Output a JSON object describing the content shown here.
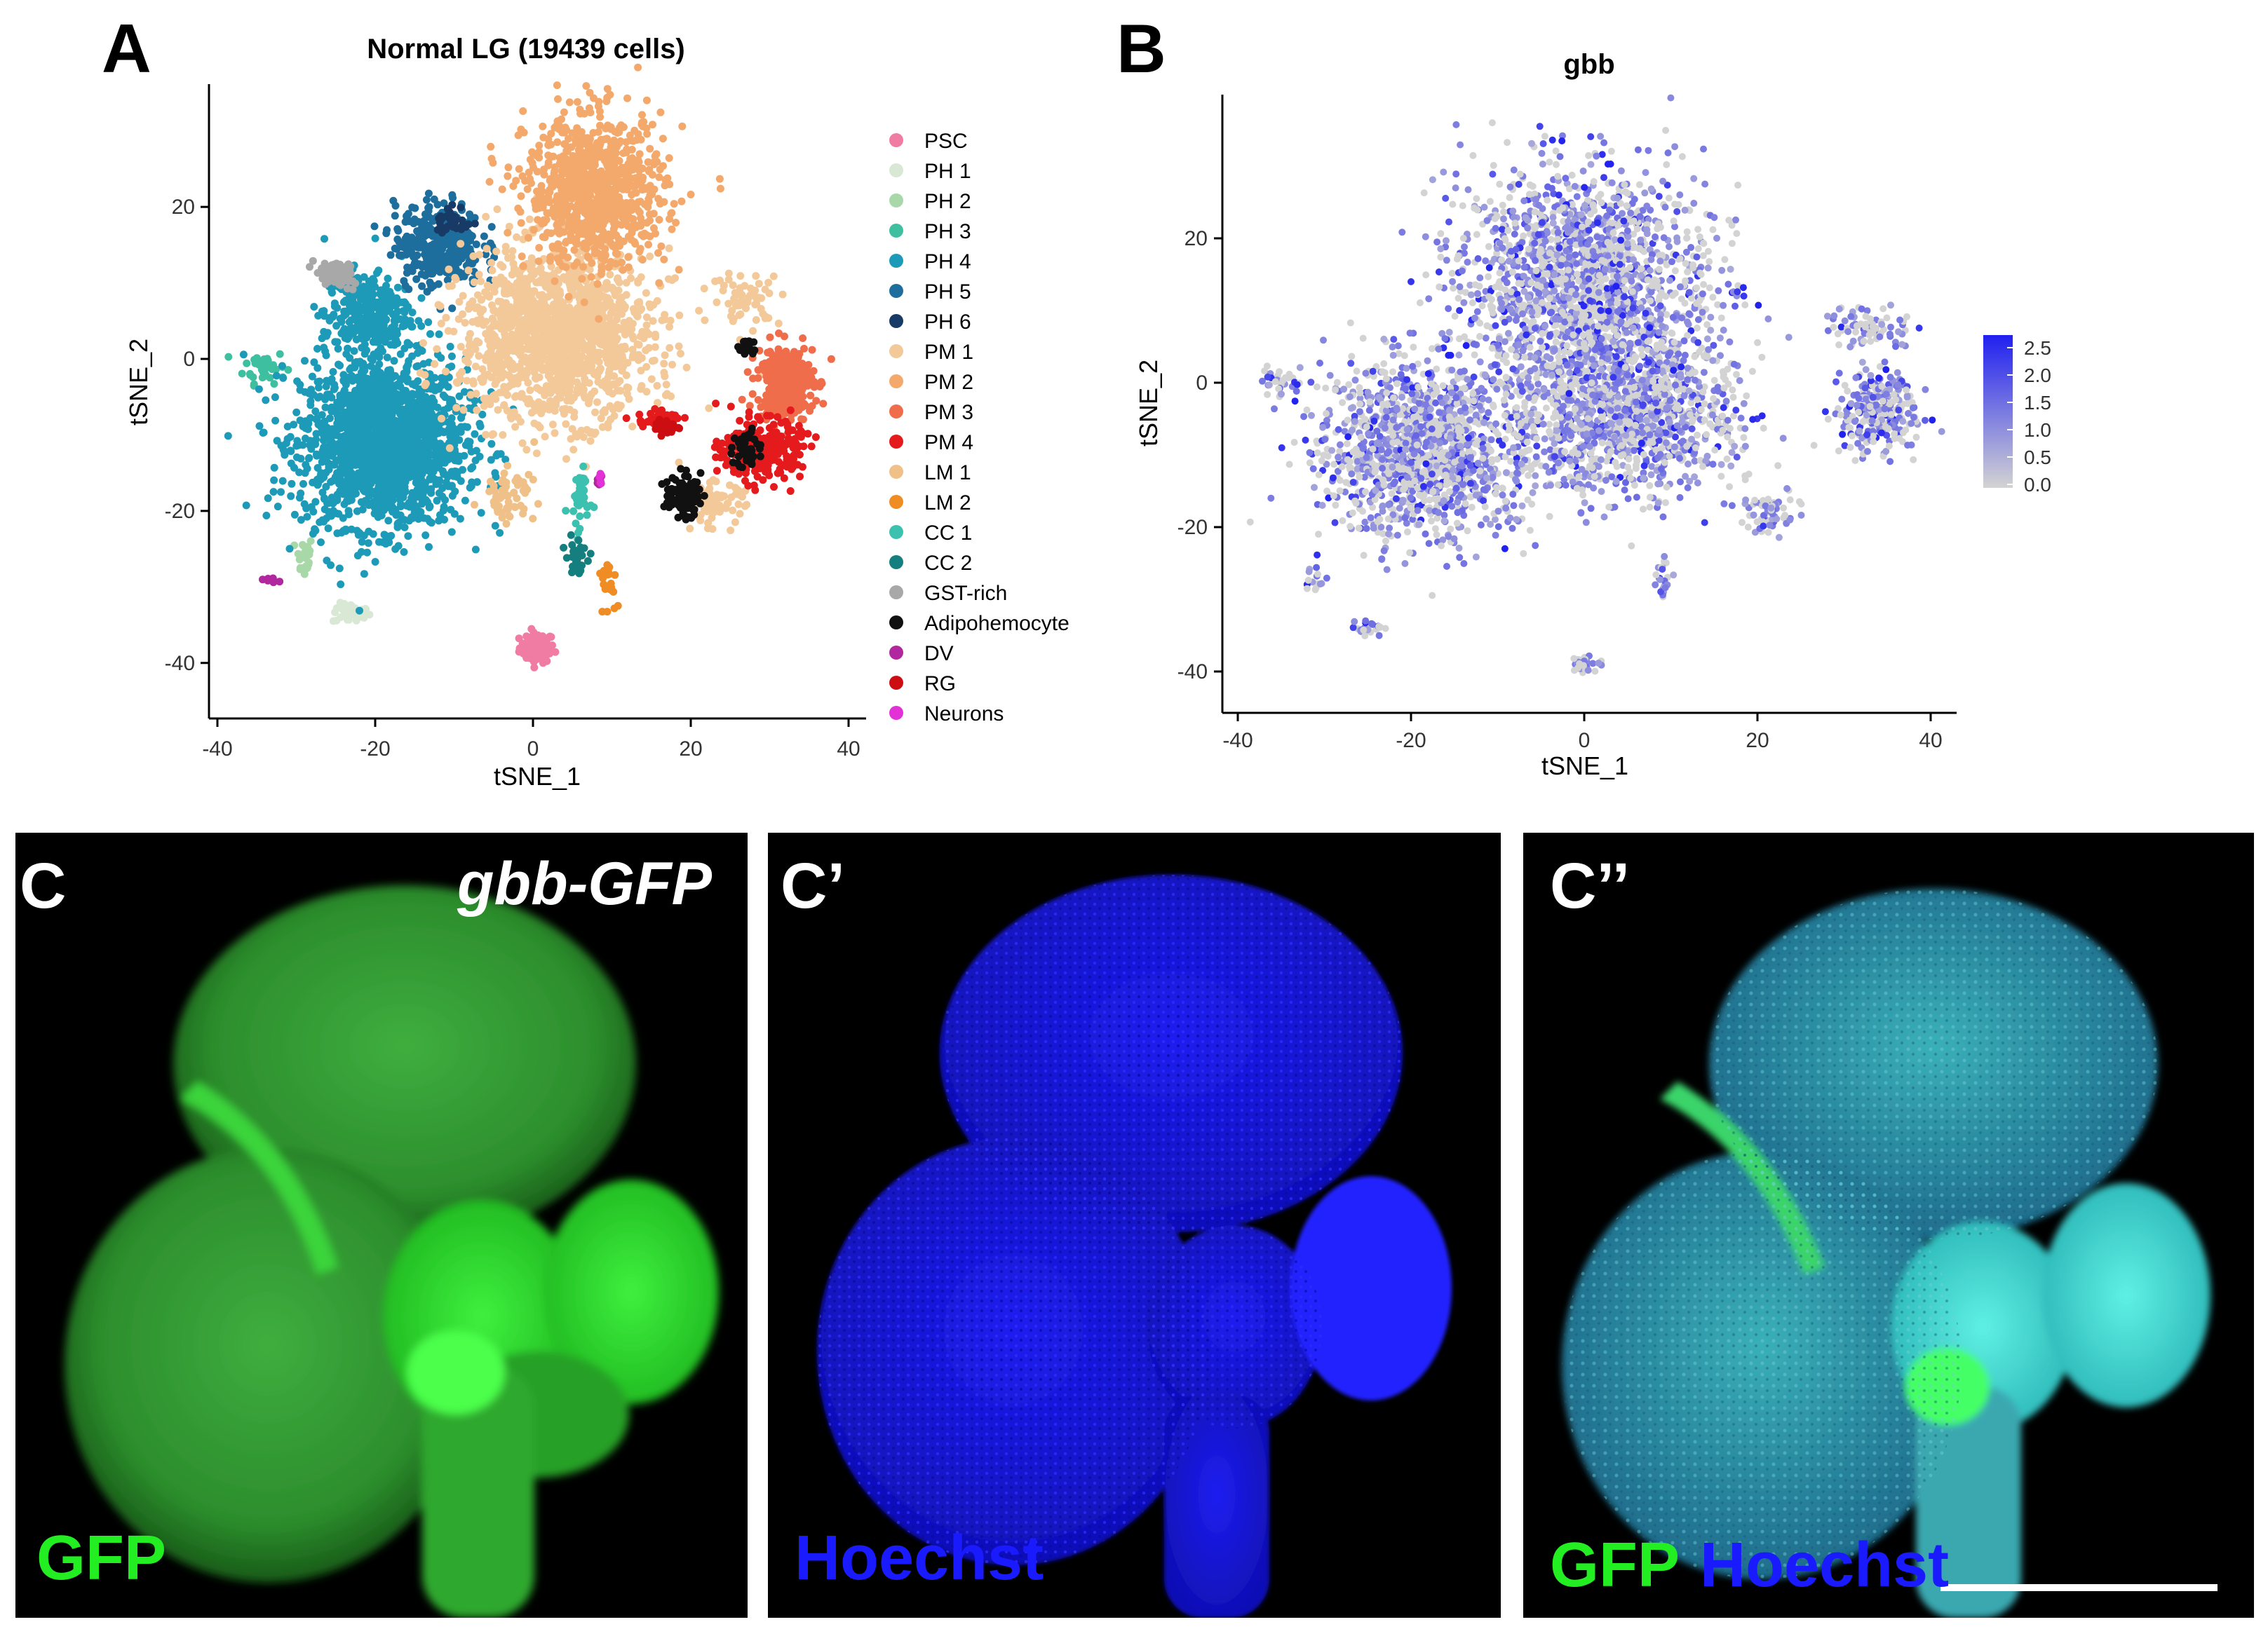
{
  "figure": {
    "panel_a_letter": "A",
    "panel_b_letter": "B",
    "panel_c_letter": "C",
    "panel_c1_letter": "C’",
    "panel_c2_letter": "C’’"
  },
  "chart_data": [
    {
      "type": "scatter",
      "panel": "A",
      "title": "Normal LG (19439 cells)",
      "xlabel": "tSNE_1",
      "ylabel": "tSNE_2",
      "xlim": [
        -42,
        42
      ],
      "ylim": [
        -45,
        38
      ],
      "xticks": [
        -40,
        -20,
        0,
        20,
        40
      ],
      "yticks": [
        -40,
        -20,
        0,
        20
      ],
      "grid": false,
      "legend_position": "right",
      "series": [
        {
          "name": "PSC",
          "color": "#f07ca4",
          "clusters": [
            [
              0.5,
              -38,
              2,
              1.8,
              80
            ]
          ]
        },
        {
          "name": "PH 1",
          "color": "#d9e8d4",
          "clusters": [
            [
              -23,
              -33.5,
              2.2,
              1.2,
              40
            ]
          ]
        },
        {
          "name": "PH 2",
          "color": "#a9d8a8",
          "clusters": [
            [
              -29,
              -26,
              1,
              2.5,
              30
            ]
          ]
        },
        {
          "name": "PH 3",
          "color": "#3dbfa0",
          "clusters": [
            [
              -34,
              -1,
              2.4,
              2,
              40
            ]
          ]
        },
        {
          "name": "PH 4",
          "color": "#1d9ab8",
          "clusters": [
            [
              -19,
              -11,
              9.5,
              10,
              1800
            ],
            [
              -21,
              6,
              5,
              5,
              300
            ]
          ]
        },
        {
          "name": "PH 5",
          "color": "#1d6e9c",
          "clusters": [
            [
              -12,
              15,
              5,
              5,
              350
            ]
          ]
        },
        {
          "name": "PH 6",
          "color": "#173a66",
          "clusters": [
            [
              -10,
              18,
              2,
              2,
              30
            ]
          ]
        },
        {
          "name": "PM 1",
          "color": "#f3c99a",
          "clusters": [
            [
              3,
              3,
              11,
              10,
              1500
            ],
            [
              23,
              -19,
              3.5,
              2.5,
              80
            ],
            [
              27,
              8,
              4,
              3,
              60
            ]
          ]
        },
        {
          "name": "PM 2",
          "color": "#f4a96c",
          "clusters": [
            [
              8,
              22,
              8,
              9,
              900
            ]
          ]
        },
        {
          "name": "PM 3",
          "color": "#ef6d4a",
          "clusters": [
            [
              32,
              -3,
              3.2,
              4.5,
              320
            ]
          ]
        },
        {
          "name": "PM 4",
          "color": "#e41a1c",
          "clusters": [
            [
              29,
              -12,
              4.5,
              3.5,
              300
            ],
            [
              16,
              -8,
              2.5,
              1,
              50
            ]
          ]
        },
        {
          "name": "LM 1",
          "color": "#f0c089",
          "clusters": [
            [
              -3,
              -18,
              3,
              3,
              60
            ]
          ]
        },
        {
          "name": "LM 2",
          "color": "#f08c24",
          "clusters": [
            [
              9.5,
              -29,
              1,
              2.8,
              25
            ]
          ]
        },
        {
          "name": "CC 1",
          "color": "#3cc0b0",
          "clusters": [
            [
              6,
              -19,
              1.2,
              4.5,
              40
            ]
          ]
        },
        {
          "name": "CC 2",
          "color": "#157e7e",
          "clusters": [
            [
              5.5,
              -26,
              1.2,
              2,
              35
            ]
          ]
        },
        {
          "name": "GST-rich",
          "color": "#a8a8a8",
          "clusters": [
            [
              -25,
              11,
              2.5,
              1.5,
              70
            ]
          ]
        },
        {
          "name": "Adipohemocyte",
          "color": "#111111",
          "clusters": [
            [
              19,
              -18,
              2,
              2.5,
              90
            ],
            [
              27,
              -12,
              1.5,
              2.5,
              40
            ],
            [
              27,
              1.5,
              1,
              1.5,
              20
            ]
          ]
        },
        {
          "name": "DV",
          "color": "#b0279e",
          "clusters": [
            [
              -33,
              -29,
              1,
              0.4,
              6
            ],
            [
              8.5,
              -16,
              0.4,
              0.9,
              6
            ]
          ]
        },
        {
          "name": "RG",
          "color": "#cc0e12",
          "clusters": [
            [
              17,
              -9,
              1.5,
              0.8,
              30
            ]
          ]
        },
        {
          "name": "Neurons",
          "color": "#e331d8",
          "clusters": [
            [
              8.5,
              -15.5,
              0.4,
              1.2,
              6
            ]
          ]
        }
      ]
    },
    {
      "type": "scatter",
      "panel": "B",
      "title": "gbb",
      "xlabel": "tSNE_1",
      "ylabel": "tSNE_2",
      "xlim": [
        -42,
        43
      ],
      "ylim": [
        -47,
        40
      ],
      "xticks": [
        -40,
        -20,
        0,
        20,
        40
      ],
      "yticks": [
        -40,
        -20,
        0,
        20
      ],
      "grid": false,
      "colorbar": {
        "min": 0.0,
        "max": 2.5,
        "low_color": "#d3d3d3",
        "high_color": "#2020f0",
        "ticks": [
          "2.5",
          "2.0",
          "1.5",
          "1.0",
          "0.5",
          "0.0"
        ]
      },
      "clusters": [
        [
          0,
          14,
          13,
          14,
          1800
        ],
        [
          -18,
          -9,
          11,
          11,
          1400
        ],
        [
          5,
          -4,
          11,
          10,
          1200
        ],
        [
          34,
          -4,
          4,
          5,
          280
        ],
        [
          33,
          8,
          4,
          3,
          80
        ],
        [
          21,
          -18,
          3,
          2.5,
          70
        ],
        [
          -25,
          -34,
          1.5,
          1,
          25
        ],
        [
          0,
          -39,
          1.5,
          1.2,
          40
        ],
        [
          -35,
          0,
          2,
          2,
          30
        ],
        [
          9,
          -27,
          1,
          3,
          25
        ],
        [
          -31,
          -27,
          1,
          2.5,
          15
        ]
      ],
      "point_value_note": "per-cell gbb expression, 0.0–2.5"
    }
  ],
  "micrographs": {
    "c_tag": "gbb-GFP",
    "c_stain": "GFP",
    "c1_stain": "Hoechst",
    "c2_stain_a": "GFP",
    "c2_stain_b": "Hoechst",
    "colors": {
      "gfp": "#22ee22",
      "hoechst": "#1a1aff",
      "merge": "#2cb8b8"
    }
  }
}
